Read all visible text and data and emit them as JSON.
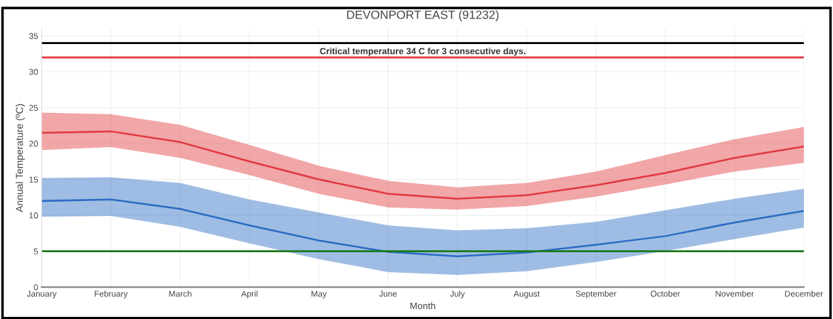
{
  "chart_data": {
    "type": "line",
    "title": "DEVONPORT EAST (91232)",
    "xlabel": "Month",
    "ylabel": "Annual Temperature (ºC)",
    "categories": [
      "January",
      "February",
      "March",
      "April",
      "May",
      "June",
      "July",
      "August",
      "September",
      "October",
      "November",
      "December"
    ],
    "series": [
      {
        "color": "#e0393e",
        "values": [
          21.5,
          21.7,
          20.2,
          17.5,
          15.0,
          13.0,
          12.3,
          12.8,
          14.2,
          15.9,
          18.0,
          19.6
        ],
        "upper": [
          24.3,
          24.1,
          22.6,
          19.8,
          16.9,
          14.8,
          13.9,
          14.5,
          16.1,
          18.4,
          20.6,
          22.3
        ],
        "lower": [
          19.1,
          19.5,
          18.0,
          15.6,
          13.0,
          11.1,
          10.8,
          11.3,
          12.6,
          14.3,
          16.1,
          17.3
        ]
      },
      {
        "color": "#2b6cc4",
        "values": [
          12.0,
          12.2,
          10.9,
          8.6,
          6.5,
          4.9,
          4.3,
          4.8,
          5.9,
          7.1,
          9.0,
          10.6
        ],
        "upper": [
          15.2,
          15.3,
          14.5,
          12.2,
          10.4,
          8.6,
          7.9,
          8.2,
          9.1,
          10.7,
          12.3,
          13.7
        ],
        "lower": [
          9.8,
          9.9,
          8.4,
          6.1,
          3.9,
          2.1,
          1.7,
          2.2,
          3.5,
          5.0,
          6.7,
          8.3
        ]
      }
    ],
    "ref_lines": [
      {
        "axis": "y",
        "value": 34,
        "color": "#000000"
      },
      {
        "axis": "y",
        "value": 32,
        "color": "#e0393e",
        "label": "Critical temperature 34 C for 3 consecutive days."
      },
      {
        "axis": "y",
        "value": 5,
        "color": "#1a7a1a"
      }
    ],
    "ylim": [
      0,
      36
    ],
    "yticks": [
      0,
      5,
      10,
      15,
      20,
      25,
      30,
      35
    ],
    "grid": true,
    "legend": false,
    "marker": "none",
    "line_style": "solid"
  }
}
